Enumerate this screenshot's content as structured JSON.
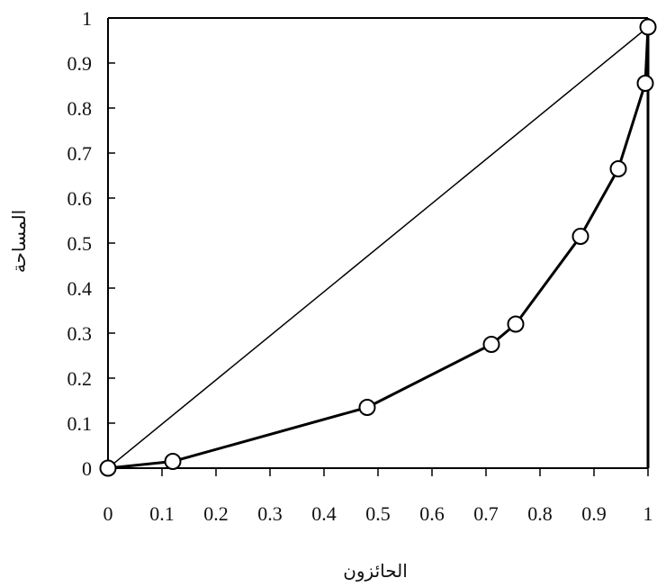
{
  "chart_data": {
    "type": "line",
    "title": "",
    "xlabel": "الحائزون",
    "ylabel": "المساحة",
    "xlim": [
      0,
      1
    ],
    "ylim": [
      0,
      1
    ],
    "grid": false,
    "legend": "none",
    "x_ticks": [
      "0",
      "0.1",
      "0.2",
      "0.3",
      "0.4",
      "0.5",
      "0.6",
      "0.7",
      "0.8",
      "0.9",
      "1"
    ],
    "y_ticks": [
      "0",
      "0.1",
      "0.2",
      "0.3",
      "0.4",
      "0.5",
      "0.6",
      "0.7",
      "0.8",
      "0.9",
      "1"
    ],
    "series": [
      {
        "style": "line",
        "x": [
          0,
          1
        ],
        "y": [
          0,
          0.98
        ]
      },
      {
        "style": "line-with-circle-markers",
        "x": [
          0,
          0.12,
          0.48,
          0.71,
          0.755,
          0.875,
          0.945,
          0.995,
          1.0
        ],
        "y": [
          0,
          0.015,
          0.135,
          0.275,
          0.32,
          0.515,
          0.665,
          0.855,
          0.98
        ]
      }
    ],
    "colors": {
      "line": "#000000",
      "marker_fill": "#ffffff"
    }
  }
}
